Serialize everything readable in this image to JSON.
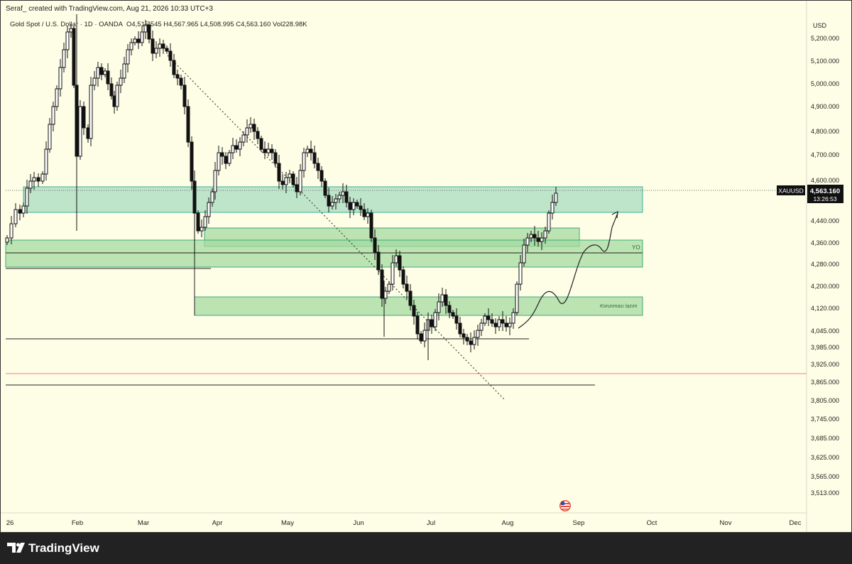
{
  "header": {
    "credit": "Seraf_ created with TradingView.com, Aug 21, 2026 10:33 UTC+3",
    "symbol_line": "Gold Spot / U.S. Dollar · 1D · OANDA",
    "ohlc": "O4,515.545  H4,567.965  L4,508.995  C4,563.160  Vol228.98K"
  },
  "price_axis": {
    "currency": "USD",
    "ticks": [
      "5,200.000",
      "5,100.000",
      "5,000.000",
      "4,900.000",
      "4,800.000",
      "4,700.000",
      "4,600.000",
      "4,440.000",
      "4,360.000",
      "4,280.000",
      "4,200.000",
      "4,120.000",
      "4,045.000",
      "3,985.000",
      "3,925.000",
      "3,865.000",
      "3,805.000",
      "3,745.000",
      "3,685.000",
      "3,625.000",
      "3,565.000",
      "3,513.000"
    ]
  },
  "time_axis": {
    "ticks": [
      "26",
      "Feb",
      "Mar",
      "Apr",
      "May",
      "Jun",
      "Jul",
      "Aug",
      "Sep",
      "Oct",
      "Nov",
      "Dec"
    ]
  },
  "price_label": {
    "symbol": "XAUUSD",
    "price": "4,563.160",
    "countdown": "13:26:53"
  },
  "annotations": {
    "yo": "YO",
    "protect": "Korunması lazım"
  },
  "footer": {
    "brand": "TradingView"
  },
  "colors": {
    "background": "#fefee6",
    "zone_teal": "#a8dcc0",
    "zone_green": "#a6d9a0",
    "candle": "#111111",
    "price_line_red": "#f08080"
  },
  "chart_data": {
    "type": "candlestick",
    "symbol": "XAUUSD",
    "timeframe": "1D",
    "last": {
      "open": 4515.545,
      "high": 4567.965,
      "low": 4508.995,
      "close": 4563.16,
      "volume": "228.98K"
    },
    "zones": [
      {
        "type": "teal",
        "from": 4477,
        "to": 4590,
        "start": "Jan",
        "end": "Sep"
      },
      {
        "type": "green",
        "from": 4355,
        "to": 4432,
        "start": "Mar",
        "end": "Sep"
      },
      {
        "type": "green",
        "from": 4282,
        "to": 4374,
        "start": "Jan",
        "end": "Sep",
        "label": "YO"
      },
      {
        "type": "green",
        "from": 4105,
        "to": 4178,
        "start": "Mar",
        "end": "Sep",
        "label": "Korunması lazım"
      }
    ],
    "levels": [
      {
        "price": 4291,
        "color": "black"
      },
      {
        "price": 4020,
        "color": "black"
      },
      {
        "price": 3948,
        "color": "red"
      },
      {
        "price": 3870,
        "color": "black"
      },
      {
        "price": 4565,
        "color": "gray-dotted"
      }
    ],
    "projection_path": [
      {
        "date": "Aug",
        "price": 4050
      },
      {
        "date": "Aug",
        "price": 4170
      },
      {
        "date": "Sep",
        "price": 4130
      },
      {
        "date": "Sep",
        "price": 4360
      },
      {
        "date": "Sep",
        "price": 4350
      },
      {
        "date": "Sep",
        "price": 4480
      }
    ]
  }
}
